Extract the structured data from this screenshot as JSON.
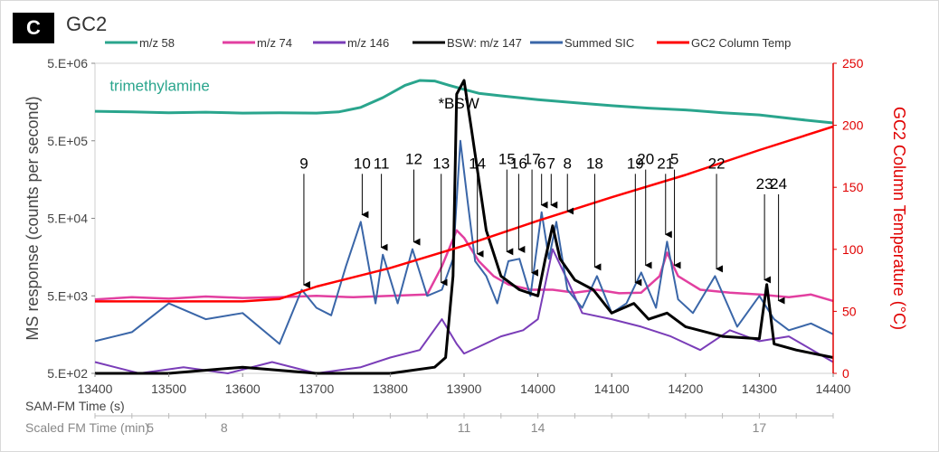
{
  "panel": {
    "label": "C",
    "title": "GC2"
  },
  "chart_data": {
    "type": "line",
    "legend": [
      {
        "name": "m/z 58",
        "color": "#2aa58d"
      },
      {
        "name": "m/z 74",
        "color": "#e23fa0"
      },
      {
        "name": "m/z 146",
        "color": "#7a3db8"
      },
      {
        "name": "BSW: m/z 147",
        "color": "#000000"
      },
      {
        "name": "Summed SIC",
        "color": "#3a66a8"
      },
      {
        "name": "GC2 Column Temp",
        "color": "#ff0000"
      }
    ],
    "x_axis": {
      "label": "SAM-FM Time (s)",
      "range": [
        13400,
        14400
      ],
      "ticks": [
        "13400",
        "13500",
        "13600",
        "13700",
        "13800",
        "13900",
        "14000",
        "14100",
        "14200",
        "14300",
        "14400"
      ]
    },
    "secondary_x_axis": {
      "label": "Scaled FM Time (min)",
      "ticks": [
        {
          "label": "5",
          "at": 13475
        },
        {
          "label": "8",
          "at": 13575
        },
        {
          "label": "11",
          "at": 13900
        },
        {
          "label": "14",
          "at": 14000
        },
        {
          "label": "17",
          "at": 14300
        }
      ]
    },
    "y_axis_left": {
      "label": "MS response (counts per second)",
      "scale": "log",
      "range": [
        500,
        5000000
      ],
      "ticks": [
        "5.E+02",
        "5.E+03",
        "5.E+04",
        "5.E+05",
        "5.E+06"
      ]
    },
    "y_axis_right": {
      "label": "GC2 Column Temperature (°C)",
      "range": [
        0,
        250
      ],
      "ticks": [
        "0",
        "50",
        "100",
        "150",
        "200",
        "250"
      ]
    },
    "series": [
      {
        "name": "m/z 58",
        "axis": "left",
        "x": [
          13400,
          13450,
          13500,
          13550,
          13600,
          13650,
          13700,
          13730,
          13760,
          13790,
          13820,
          13840,
          13860,
          13880,
          13900,
          13920,
          13950,
          14000,
          14050,
          14100,
          14150,
          14200,
          14250,
          14300,
          14350,
          14400
        ],
        "y": [
          1200000,
          1180000,
          1150000,
          1170000,
          1140000,
          1150000,
          1140000,
          1180000,
          1350000,
          1800000,
          2600000,
          3000000,
          2950000,
          2600000,
          2300000,
          2050000,
          1900000,
          1700000,
          1550000,
          1420000,
          1320000,
          1250000,
          1150000,
          1080000,
          950000,
          850000
        ]
      },
      {
        "name": "m/z 74",
        "axis": "left",
        "x": [
          13400,
          13450,
          13500,
          13550,
          13600,
          13650,
          13700,
          13750,
          13800,
          13850,
          13870,
          13890,
          13900,
          13920,
          13940,
          13960,
          13990,
          14020,
          14050,
          14080,
          14110,
          14140,
          14165,
          14175,
          14190,
          14220,
          14260,
          14300,
          14340,
          14370,
          14400
        ],
        "y": [
          4500,
          4800,
          4600,
          4900,
          4700,
          4800,
          5000,
          4800,
          5000,
          5200,
          12000,
          35000,
          28000,
          14000,
          9000,
          7000,
          6000,
          6000,
          5500,
          6000,
          5400,
          5500,
          9000,
          18000,
          9000,
          6000,
          5500,
          5200,
          4800,
          5200,
          4300
        ]
      },
      {
        "name": "m/z 146",
        "axis": "left",
        "x": [
          13400,
          13460,
          13520,
          13580,
          13640,
          13700,
          13760,
          13800,
          13840,
          13870,
          13890,
          13900,
          13920,
          13950,
          13980,
          14000,
          14020,
          14040,
          14060,
          14100,
          14140,
          14180,
          14220,
          14260,
          14300,
          14340,
          14380,
          14400
        ],
        "y": [
          700,
          500,
          600,
          500,
          700,
          500,
          600,
          800,
          1000,
          2500,
          1200,
          900,
          1100,
          1500,
          1800,
          2500,
          20000,
          8000,
          3000,
          2500,
          2000,
          1500,
          1000,
          1800,
          1300,
          1500,
          900,
          700
        ]
      },
      {
        "name": "BSW: m/z 147",
        "axis": "left",
        "x": [
          13400,
          13500,
          13600,
          13700,
          13800,
          13860,
          13875,
          13885,
          13890,
          13900,
          13910,
          13930,
          13950,
          13975,
          14000,
          14010,
          14020,
          14030,
          14050,
          14075,
          14100,
          14130,
          14150,
          14175,
          14200,
          14250,
          14300,
          14310,
          14320,
          14350,
          14400
        ],
        "y": [
          500,
          500,
          600,
          500,
          500,
          600,
          800,
          9000,
          2000000,
          3000000,
          700000,
          35000,
          9000,
          6000,
          5000,
          15000,
          40000,
          15000,
          8000,
          6000,
          3000,
          4000,
          2500,
          3000,
          2000,
          1500,
          1400,
          7000,
          1200,
          1000,
          800
        ]
      },
      {
        "name": "Summed SIC",
        "axis": "left",
        "x": [
          13400,
          13450,
          13500,
          13550,
          13600,
          13650,
          13680,
          13700,
          13720,
          13740,
          13760,
          13780,
          13790,
          13810,
          13830,
          13850,
          13870,
          13885,
          13895,
          13905,
          13915,
          13930,
          13945,
          13960,
          13975,
          13990,
          14005,
          14015,
          14025,
          14040,
          14060,
          14080,
          14100,
          14120,
          14140,
          14160,
          14175,
          14190,
          14210,
          14240,
          14270,
          14300,
          14320,
          14340,
          14370,
          14400
        ],
        "y": [
          1300,
          1700,
          4000,
          2500,
          3000,
          1200,
          6000,
          3500,
          2800,
          12000,
          45000,
          4000,
          17000,
          4000,
          20000,
          5000,
          6000,
          15000,
          500000,
          80000,
          14000,
          9000,
          4000,
          14000,
          15000,
          5000,
          60000,
          15000,
          45000,
          6000,
          3500,
          9000,
          3000,
          4000,
          10000,
          3500,
          25000,
          4500,
          3000,
          9000,
          2000,
          5000,
          2500,
          1800,
          2200,
          1600
        ]
      },
      {
        "name": "GC2 Column Temp",
        "axis": "right",
        "x": [
          13400,
          13500,
          13600,
          13650,
          13700,
          13800,
          13900,
          14000,
          14100,
          14200,
          14300,
          14400
        ],
        "y": [
          58,
          58,
          58,
          60,
          70,
          85,
          103,
          123,
          142,
          160,
          180,
          199
        ]
      }
    ],
    "annotations": [
      {
        "text": "trimethylamine",
        "x": 13420,
        "y": 2200000,
        "color": "#2aa58d"
      },
      {
        "text": "*BSW",
        "x": 13865,
        "y": 1300000,
        "color": "#000000"
      }
    ],
    "peaks": [
      {
        "label": "9",
        "x": 13683,
        "label_y": 220000,
        "tip_y": 5600
      },
      {
        "label": "10",
        "x": 13762,
        "label_y": 220000,
        "tip_y": 45000
      },
      {
        "label": "11",
        "x": 13788,
        "label_y": 220000,
        "tip_y": 17000
      },
      {
        "label": "12",
        "x": 13832,
        "label_y": 250000,
        "tip_y": 20000
      },
      {
        "label": "13",
        "x": 13869,
        "label_y": 220000,
        "tip_y": 6000
      },
      {
        "label": "14",
        "x": 13918,
        "label_y": 220000,
        "tip_y": 14000
      },
      {
        "label": "15",
        "x": 13958,
        "label_y": 250000,
        "tip_y": 15000
      },
      {
        "label": "16",
        "x": 13974,
        "label_y": 220000,
        "tip_y": 16000
      },
      {
        "label": "17",
        "x": 13992,
        "label_y": 250000,
        "tip_y": 8000
      },
      {
        "label": "6",
        "x": 14005,
        "label_y": 220000,
        "tip_y": 60000
      },
      {
        "label": "7",
        "x": 14018,
        "label_y": 220000,
        "tip_y": 60000
      },
      {
        "label": "8",
        "x": 14040,
        "label_y": 220000,
        "tip_y": 50000
      },
      {
        "label": "18",
        "x": 14077,
        "label_y": 220000,
        "tip_y": 9500
      },
      {
        "label": "19",
        "x": 14132,
        "label_y": 220000,
        "tip_y": 6000
      },
      {
        "label": "20",
        "x": 14146,
        "label_y": 250000,
        "tip_y": 10000
      },
      {
        "label": "21",
        "x": 14173,
        "label_y": 220000,
        "tip_y": 25000
      },
      {
        "label": "5",
        "x": 14185,
        "label_y": 250000,
        "tip_y": 10000
      },
      {
        "label": "22",
        "x": 14242,
        "label_y": 220000,
        "tip_y": 9000
      },
      {
        "label": "23",
        "x": 14307,
        "label_y": 120000,
        "tip_y": 6500
      },
      {
        "label": "24",
        "x": 14326,
        "label_y": 120000,
        "tip_y": 3500
      }
    ]
  }
}
